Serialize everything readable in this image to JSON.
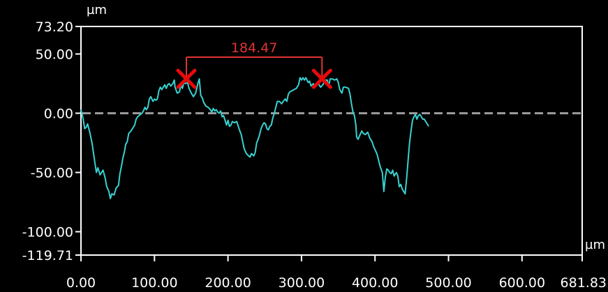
{
  "chart_data": {
    "type": "line",
    "title": "",
    "xlabel": "µm",
    "ylabel": "µm",
    "xlim": [
      0,
      681.83
    ],
    "ylim": [
      -119.71,
      73.2
    ],
    "grid": false,
    "x_ticks": [
      "0.00",
      "100.00",
      "200.00",
      "300.00",
      "400.00",
      "500.00",
      "600.00",
      "681.83"
    ],
    "y_ticks": [
      "73.20",
      "50.00",
      "0.00",
      "-50.00",
      "-100.00",
      "-119.71"
    ],
    "reference_line_y": 0,
    "series": [
      {
        "color": "#39d1d1",
        "points": [
          [
            0,
            3
          ],
          [
            3,
            -5
          ],
          [
            5,
            -13
          ],
          [
            7,
            -12
          ],
          [
            9,
            -9
          ],
          [
            12,
            -16
          ],
          [
            15,
            -25
          ],
          [
            19,
            -42
          ],
          [
            21,
            -50
          ],
          [
            23,
            -46
          ],
          [
            26,
            -52
          ],
          [
            30,
            -48
          ],
          [
            33,
            -55
          ],
          [
            35,
            -62
          ],
          [
            38,
            -66
          ],
          [
            40,
            -72
          ],
          [
            42,
            -68
          ],
          [
            45,
            -69
          ],
          [
            48,
            -63
          ],
          [
            51,
            -61
          ],
          [
            53,
            -51
          ],
          [
            55,
            -45
          ],
          [
            57,
            -38
          ],
          [
            59,
            -33
          ],
          [
            61,
            -26
          ],
          [
            63,
            -24
          ],
          [
            65,
            -17
          ],
          [
            68,
            -15
          ],
          [
            71,
            -12
          ],
          [
            73,
            -10
          ],
          [
            75,
            -5
          ],
          [
            77,
            -3
          ],
          [
            79,
            -2
          ],
          [
            81,
            -1
          ],
          [
            83,
            0
          ],
          [
            85,
            2
          ],
          [
            87,
            5
          ],
          [
            89,
            3
          ],
          [
            91,
            5
          ],
          [
            93,
            12
          ],
          [
            95,
            14
          ],
          [
            98,
            10
          ],
          [
            100,
            12
          ],
          [
            102,
            11
          ],
          [
            104,
            12
          ],
          [
            106,
            19
          ],
          [
            108,
            22
          ],
          [
            110,
            20
          ],
          [
            112,
            22
          ],
          [
            114,
            24
          ],
          [
            116,
            21
          ],
          [
            118,
            24
          ],
          [
            120,
            25
          ],
          [
            122,
            23
          ],
          [
            125,
            25
          ],
          [
            127,
            28
          ],
          [
            128,
            22
          ],
          [
            131,
            17
          ],
          [
            134,
            18
          ],
          [
            136,
            24
          ],
          [
            138,
            21
          ],
          [
            140,
            26
          ],
          [
            142,
            25
          ],
          [
            145,
            26
          ],
          [
            147,
            21
          ],
          [
            150,
            17
          ],
          [
            153,
            14
          ],
          [
            156,
            17
          ],
          [
            159,
            25
          ],
          [
            161,
            29
          ],
          [
            163,
            15
          ],
          [
            165,
            13
          ],
          [
            167,
            9
          ],
          [
            170,
            6
          ],
          [
            173,
            5
          ],
          [
            176,
            3
          ],
          [
            178,
            1
          ],
          [
            180,
            4
          ],
          [
            182,
            2
          ],
          [
            184,
            3
          ],
          [
            186,
            1
          ],
          [
            188,
            0
          ],
          [
            190,
            2
          ],
          [
            192,
            -3
          ],
          [
            194,
            -2
          ],
          [
            196,
            -6
          ],
          [
            198,
            -10
          ],
          [
            200,
            -6
          ],
          [
            202,
            -11
          ],
          [
            204,
            -10
          ],
          [
            206,
            -7
          ],
          [
            209,
            -8
          ],
          [
            212,
            -7
          ],
          [
            215,
            -13
          ],
          [
            218,
            -18
          ],
          [
            220,
            -24
          ],
          [
            222,
            -30
          ],
          [
            225,
            -34
          ],
          [
            228,
            -36
          ],
          [
            230,
            -37
          ],
          [
            232,
            -34
          ],
          [
            235,
            -36
          ],
          [
            237,
            -33
          ],
          [
            239,
            -25
          ],
          [
            241,
            -22
          ],
          [
            243,
            -18
          ],
          [
            245,
            -13
          ],
          [
            247,
            -10
          ],
          [
            249,
            -8
          ],
          [
            251,
            -9
          ],
          [
            253,
            -13
          ],
          [
            255,
            -14
          ],
          [
            257,
            -11
          ],
          [
            259,
            -10
          ],
          [
            261,
            -4
          ],
          [
            263,
            0
          ],
          [
            265,
            5
          ],
          [
            267,
            10
          ],
          [
            270,
            10
          ],
          [
            273,
            8
          ],
          [
            275,
            10
          ],
          [
            278,
            12
          ],
          [
            280,
            10
          ],
          [
            282,
            16
          ],
          [
            284,
            18
          ],
          [
            287,
            19
          ],
          [
            290,
            20
          ],
          [
            293,
            21
          ],
          [
            296,
            24
          ],
          [
            298,
            30
          ],
          [
            300,
            28
          ],
          [
            302,
            30
          ],
          [
            304,
            28
          ],
          [
            306,
            30
          ],
          [
            309,
            26
          ],
          [
            311,
            27
          ],
          [
            313,
            23
          ],
          [
            316,
            25
          ],
          [
            318,
            22
          ],
          [
            320,
            23
          ],
          [
            323,
            25
          ],
          [
            326,
            22
          ],
          [
            329,
            24
          ],
          [
            332,
            28
          ],
          [
            335,
            28
          ],
          [
            337,
            23
          ],
          [
            339,
            29
          ],
          [
            342,
            29
          ],
          [
            345,
            28
          ],
          [
            348,
            29
          ],
          [
            350,
            26
          ],
          [
            352,
            20
          ],
          [
            355,
            17
          ],
          [
            357,
            22
          ],
          [
            360,
            22
          ],
          [
            364,
            21
          ],
          [
            366,
            16
          ],
          [
            368,
            8
          ],
          [
            370,
            1
          ],
          [
            372,
            -2
          ],
          [
            374,
            -10
          ],
          [
            375,
            -20
          ],
          [
            377,
            -22
          ],
          [
            379,
            -19
          ],
          [
            382,
            -15
          ],
          [
            384,
            -17
          ],
          [
            387,
            -18
          ],
          [
            390,
            -16
          ],
          [
            393,
            -21
          ],
          [
            396,
            -24
          ],
          [
            398,
            -28
          ],
          [
            401,
            -32
          ],
          [
            403,
            -35
          ],
          [
            405,
            -40
          ],
          [
            407,
            -45
          ],
          [
            410,
            -50
          ],
          [
            412,
            -66
          ],
          [
            414,
            -54
          ],
          [
            416,
            -47
          ],
          [
            418,
            -48
          ],
          [
            420,
            -50
          ],
          [
            422,
            -51
          ],
          [
            424,
            -48
          ],
          [
            426,
            -53
          ],
          [
            429,
            -50
          ],
          [
            431,
            -53
          ],
          [
            433,
            -62
          ],
          [
            435,
            -60
          ],
          [
            437,
            -64
          ],
          [
            439,
            -66
          ],
          [
            441,
            -68
          ],
          [
            443,
            -55
          ],
          [
            445,
            -40
          ],
          [
            447,
            -25
          ],
          [
            449,
            -15
          ],
          [
            451,
            -6
          ],
          [
            453,
            -3
          ],
          [
            455,
            -1
          ],
          [
            457,
            -5
          ],
          [
            459,
            -2
          ],
          [
            461,
            -1
          ],
          [
            463,
            -3
          ],
          [
            465,
            -5
          ],
          [
            467,
            -5
          ],
          [
            470,
            -8
          ],
          [
            473,
            -11
          ]
        ]
      }
    ],
    "annotation": {
      "label": "184.47",
      "color": "#e03434",
      "marker_color": "#e80a0a",
      "from": [
        143.4,
        29
      ],
      "to": [
        327.9,
        29
      ]
    }
  }
}
